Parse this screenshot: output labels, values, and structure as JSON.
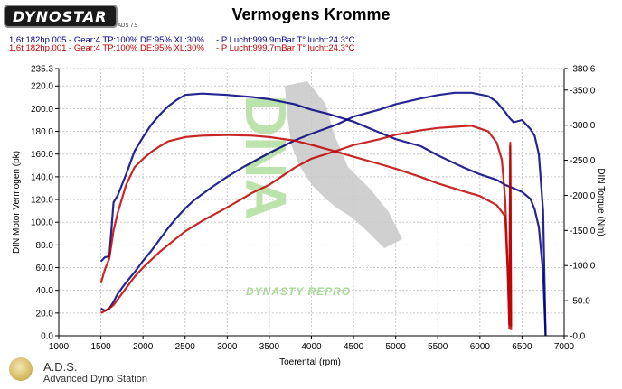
{
  "header": {
    "logo_text": "DYNOSTAR",
    "logo_sub": "ADS 7.5",
    "title": "Vermogens Kromme"
  },
  "runs": [
    {
      "label": "1,6t 182hp.005 - Gear:4 TP:100% DE:95% XL:30%     - P Lucht:999.9mBar T° lucht:24.3°C",
      "color": "#000080"
    },
    {
      "label": "1,6t 182hp.001 - Gear:4 TP:100% DE:95% XL:30%     - P Lucht:999.7mBar T° lucht:24.3°C",
      "color": "#c00000"
    }
  ],
  "watermark": {
    "text": "DYNASTY REPRO"
  },
  "footer": {
    "name": "A.D.S.",
    "subtitle": "Advanced Dyno Station"
  },
  "chart_data": {
    "type": "line",
    "xlabel": "Toerental (rpm)",
    "ylabel": "DIN Motor Vermogen (pk)",
    "y2label": "DIN Torque (Nm)",
    "xlim": [
      1000,
      7000
    ],
    "ylim": [
      0.0,
      235.3
    ],
    "y2lim": [
      0.0,
      380.6
    ],
    "x_ticks": [
      "1000",
      "1500",
      "2000",
      "2500",
      "3000",
      "3500",
      "4000",
      "4500",
      "5000",
      "5500",
      "6000",
      "6500",
      "7000"
    ],
    "y_ticks": [
      "0.0",
      "20.0",
      "40.0",
      "60.0",
      "80.0",
      "100.0",
      "120.0",
      "140.0",
      "160.0",
      "180.0",
      "200.0",
      "220.0",
      "235.3"
    ],
    "y_tick_values": [
      0,
      20,
      40,
      60,
      80,
      100,
      120,
      140,
      160,
      180,
      200,
      220,
      235.3
    ],
    "y2_ticks": [
      "-0.0",
      "-50.0",
      "-100.0",
      "-150.0",
      "-200.0",
      "-250.0",
      "-300.0",
      "-350.0",
      "-380.6"
    ],
    "y2_tick_values": [
      0,
      50,
      100,
      150,
      200,
      250,
      300,
      350,
      380.6
    ],
    "grid": true,
    "series": [
      {
        "name": "1,6t 182hp.005 power",
        "axis": "left",
        "color": "#000080",
        "x": [
          1500,
          1550,
          1600,
          1650,
          1700,
          1800,
          1900,
          2000,
          2100,
          2200,
          2300,
          2400,
          2500,
          2600,
          2800,
          3000,
          3200,
          3500,
          3800,
          4000,
          4300,
          4500,
          4800,
          5000,
          5300,
          5500,
          5700,
          5900,
          6100,
          6200,
          6300,
          6350,
          6400,
          6500,
          6600,
          6650,
          6700,
          6750,
          6780
        ],
        "y": [
          24,
          22,
          24,
          30,
          37,
          47,
          56,
          66,
          75,
          85,
          95,
          104,
          112,
          119,
          130,
          140,
          149,
          161,
          172,
          178,
          186,
          193,
          199,
          204,
          209,
          212,
          214,
          214,
          211,
          206,
          197,
          192,
          188,
          190,
          182,
          176,
          160,
          110,
          0
        ]
      },
      {
        "name": "1,6t 182hp.005 torque",
        "axis": "right",
        "color": "#000080",
        "x": [
          1500,
          1550,
          1600,
          1650,
          1700,
          1800,
          1900,
          2000,
          2100,
          2200,
          2300,
          2400,
          2500,
          2700,
          3000,
          3300,
          3500,
          3800,
          4000,
          4200,
          4500,
          4800,
          5000,
          5300,
          5500,
          5800,
          6000,
          6200,
          6300,
          6400,
          6500,
          6600,
          6650,
          6700,
          6750,
          6780
        ],
        "y": [
          106,
          112,
          113,
          190,
          200,
          230,
          263,
          283,
          301,
          315,
          327,
          336,
          343,
          345,
          343,
          340,
          337,
          330,
          322,
          316,
          305,
          290,
          280,
          270,
          257,
          240,
          230,
          222,
          215,
          210,
          205,
          195,
          180,
          155,
          90,
          0
        ]
      },
      {
        "name": "1,6t 182hp.001 power",
        "axis": "left",
        "color": "#c00000",
        "x": [
          1500,
          1550,
          1600,
          1650,
          1700,
          1800,
          1900,
          2000,
          2100,
          2200,
          2300,
          2400,
          2500,
          2700,
          3000,
          3300,
          3500,
          3800,
          4000,
          4300,
          4500,
          4800,
          5000,
          5300,
          5500,
          5700,
          5900,
          6100,
          6200,
          6260,
          6300,
          6330,
          6350,
          6360,
          6370
        ],
        "y": [
          20,
          22,
          24,
          27,
          32,
          42,
          52,
          60,
          67,
          74,
          80,
          86,
          92,
          101,
          113,
          126,
          133,
          148,
          156,
          163,
          168,
          173,
          177,
          181,
          183,
          184,
          185,
          180,
          170,
          155,
          120,
          60,
          10,
          170,
          8
        ]
      },
      {
        "name": "1,6t 182hp.001 torque",
        "axis": "right",
        "color": "#c00000",
        "x": [
          1500,
          1550,
          1600,
          1650,
          1700,
          1800,
          1900,
          2000,
          2100,
          2200,
          2300,
          2400,
          2500,
          2700,
          3000,
          3300,
          3500,
          3800,
          4000,
          4300,
          4500,
          4800,
          5000,
          5300,
          5500,
          5800,
          6000,
          6200,
          6300,
          6330,
          6350,
          6360,
          6370
        ],
        "y": [
          75,
          95,
          110,
          150,
          175,
          215,
          240,
          252,
          262,
          270,
          277,
          280,
          283,
          285,
          286,
          285,
          283,
          278,
          272,
          262,
          255,
          245,
          238,
          226,
          217,
          206,
          199,
          186,
          170,
          90,
          10,
          270,
          8
        ]
      }
    ]
  }
}
